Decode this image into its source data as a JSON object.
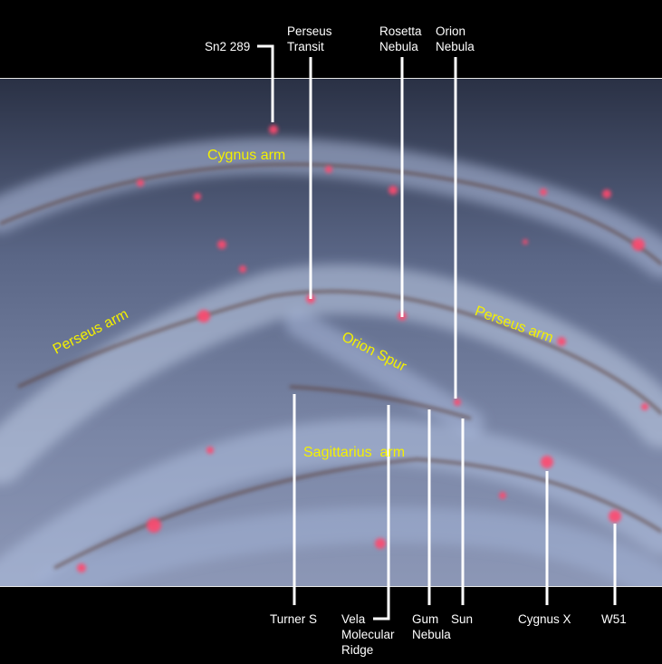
{
  "top_labels": {
    "sn2_289": "Sn2 289",
    "perseus_transit": [
      "Perseus",
      "Transit"
    ],
    "rosetta_nebula": [
      "Rosetta",
      "Nebula"
    ],
    "orion_nebula": [
      "Orion",
      "Nebula"
    ]
  },
  "bottom_labels": {
    "turner_s": "Turner S",
    "vela_molecular_ridge": [
      "Vela",
      "Molecular",
      "Ridge"
    ],
    "gum_nebula": [
      "Gum",
      "Nebula"
    ],
    "sun": "Sun",
    "cygnus_x": "Cygnus X",
    "w51": "W51"
  },
  "arm_labels": {
    "cygnus_arm": "Cygnus arm",
    "perseus_arm_left": "Perseus arm",
    "orion_spur": "Orion Spur",
    "perseus_arm_right": "Perseus arm",
    "sagittarius_arm": "Sagittarius  arm"
  },
  "colors": {
    "arm_label": "#f4f000",
    "leader_line": "#ffffff",
    "background": "#000000",
    "nebula": "#ff4a6e"
  }
}
